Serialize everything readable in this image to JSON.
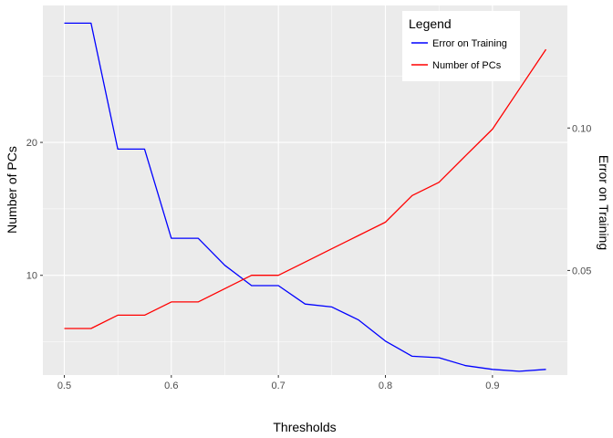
{
  "chart_data": {
    "type": "line",
    "title": "",
    "xlabel": "Thresholds",
    "ylabel_left": "Number of PCs",
    "ylabel_right": "Error on Training",
    "xlim": [
      0.48,
      0.97
    ],
    "ylim_left": [
      2.5,
      30.3
    ],
    "ylim_right": [
      0.0133,
      0.143
    ],
    "x_ticks": [
      {
        "value": 0.5,
        "label": "0.5"
      },
      {
        "value": 0.6,
        "label": "0.6"
      },
      {
        "value": 0.7,
        "label": "0.7"
      },
      {
        "value": 0.8,
        "label": "0.8"
      },
      {
        "value": 0.9,
        "label": "0.9"
      }
    ],
    "y_ticks_left": [
      {
        "value": 10,
        "label": "10"
      },
      {
        "value": 20,
        "label": "20"
      }
    ],
    "y_ticks_right": [
      {
        "value": 0.05,
        "label": "0.05"
      },
      {
        "value": 0.1,
        "label": "0.10"
      }
    ],
    "grid": true,
    "legend": {
      "title": "Legend",
      "position": "top-right",
      "entries": [
        {
          "label": "Error on Training",
          "color": "#0000ff"
        },
        {
          "label": "Number of PCs",
          "color": "#ff0000"
        }
      ]
    },
    "x": [
      0.5,
      0.525,
      0.55,
      0.575,
      0.6,
      0.625,
      0.65,
      0.675,
      0.7,
      0.725,
      0.75,
      0.775,
      0.8,
      0.825,
      0.85,
      0.875,
      0.9,
      0.925,
      0.95
    ],
    "series": [
      {
        "name": "Error on Training",
        "axis": "right",
        "color": "#0000ff",
        "values": [
          0.1368,
          0.1368,
          0.0926,
          0.0926,
          0.0613,
          0.0613,
          0.0518,
          0.0447,
          0.0447,
          0.0382,
          0.0372,
          0.0326,
          0.0252,
          0.0199,
          0.0194,
          0.0166,
          0.0153,
          0.0146,
          0.0153
        ]
      },
      {
        "name": "Number of PCs",
        "axis": "left",
        "color": "#ff0000",
        "values": [
          6,
          6,
          7,
          7,
          8,
          8,
          9,
          10,
          10,
          11,
          12,
          13,
          14,
          16,
          17,
          19,
          21,
          24,
          27
        ]
      }
    ]
  }
}
